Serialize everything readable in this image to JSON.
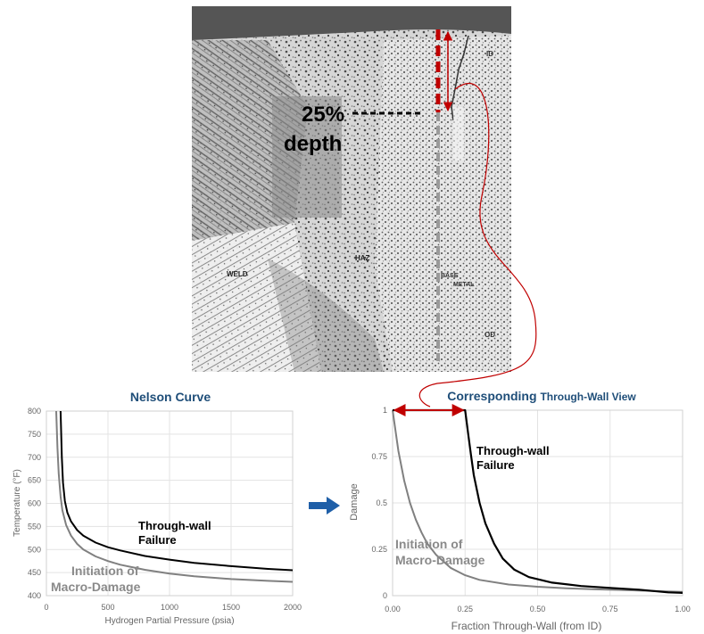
{
  "micrograph": {
    "depth_pct_label": "25%",
    "depth_word_label": "depth",
    "region_labels": {
      "id": "ID",
      "weld": "WELD",
      "haz": "HAZ",
      "base": "BASE",
      "metal": "METAL",
      "od": "OD"
    },
    "colors": {
      "red": "#c00000",
      "gray": "#9a9a9a"
    }
  },
  "chart_data": [
    {
      "type": "line",
      "title": "Nelson Curve",
      "xlabel": "Hydrogen Partial Pressure (psia)",
      "ylabel": "Temperature (°F)",
      "xlim": [
        0,
        2000
      ],
      "ylim": [
        400,
        800
      ],
      "x_ticks": [
        "0",
        "500",
        "1000",
        "1500",
        "2000"
      ],
      "y_ticks": [
        "400",
        "450",
        "500",
        "550",
        "600",
        "650",
        "700",
        "750",
        "800"
      ],
      "grid": true,
      "series": [
        {
          "name": "Initiation of Macro-Damage",
          "color": "#808080",
          "x": [
            80,
            90,
            100,
            115,
            130,
            160,
            200,
            250,
            300,
            400,
            500,
            600,
            800,
            1000,
            1200,
            1500,
            1800,
            2000
          ],
          "y": [
            800,
            720,
            665,
            615,
            585,
            553,
            530,
            512,
            500,
            485,
            475,
            467,
            456,
            448,
            442,
            436,
            432,
            430
          ]
        },
        {
          "name": "Through-wall Failure",
          "color": "#000000",
          "x": [
            115,
            125,
            135,
            150,
            170,
            200,
            250,
            300,
            400,
            500,
            600,
            800,
            1000,
            1200,
            1500,
            1800,
            2000
          ],
          "y": [
            800,
            700,
            645,
            605,
            580,
            561,
            542,
            530,
            515,
            505,
            498,
            486,
            478,
            471,
            464,
            458,
            455
          ]
        }
      ],
      "annotations": [
        {
          "text_line1": "Through-wall",
          "text_line2": "Failure",
          "color": "#000000"
        },
        {
          "text_line1": "Initiation of",
          "text_line2": "Macro-Damage",
          "color": "#8a8a8a"
        }
      ]
    },
    {
      "type": "line",
      "title_part1": "Corresponding ",
      "title_part2": "Through-Wall View",
      "xlabel": "Fraction Through-Wall (from ID)",
      "ylabel": "Damage",
      "xlim": [
        0,
        1
      ],
      "ylim": [
        0,
        1
      ],
      "x_ticks": [
        "0.00",
        "0.25",
        "0.50",
        "0.75",
        "1.00"
      ],
      "y_ticks": [
        "0",
        "0.25",
        "0.5",
        "0.75",
        "1"
      ],
      "grid": true,
      "series": [
        {
          "name": "Initiation of Macro-Damage",
          "color": "#808080",
          "x": [
            0,
            0.02,
            0.04,
            0.06,
            0.08,
            0.1,
            0.12,
            0.15,
            0.2,
            0.25,
            0.3,
            0.4,
            0.5,
            0.6,
            0.7,
            0.8,
            0.9,
            1.0
          ],
          "y": [
            1,
            0.78,
            0.62,
            0.5,
            0.41,
            0.34,
            0.28,
            0.22,
            0.15,
            0.11,
            0.085,
            0.06,
            0.048,
            0.04,
            0.034,
            0.03,
            0.025,
            0.02
          ]
        },
        {
          "name": "Through-wall Failure",
          "color": "#000000",
          "x": [
            0,
            0.25,
            0.26,
            0.27,
            0.28,
            0.3,
            0.32,
            0.35,
            0.38,
            0.42,
            0.47,
            0.55,
            0.65,
            0.75,
            0.85,
            0.95,
            1.0
          ],
          "y": [
            1,
            1,
            0.88,
            0.76,
            0.65,
            0.5,
            0.39,
            0.28,
            0.2,
            0.14,
            0.1,
            0.07,
            0.052,
            0.042,
            0.032,
            0.018,
            0.015
          ]
        }
      ],
      "annotations": [
        {
          "text_line1": "Through-wall",
          "text_line2": "Failure",
          "color": "#000000"
        },
        {
          "text_line1": "Initiation of",
          "text_line2": "Macro-Damage",
          "color": "#8a8a8a"
        }
      ],
      "range_arrow": {
        "x_from": 0,
        "x_to": 0.25,
        "y": 1,
        "color": "#c00000"
      }
    }
  ],
  "connector": {
    "arrow_color": "#1f5fa8",
    "curve_color": "#c00000"
  }
}
